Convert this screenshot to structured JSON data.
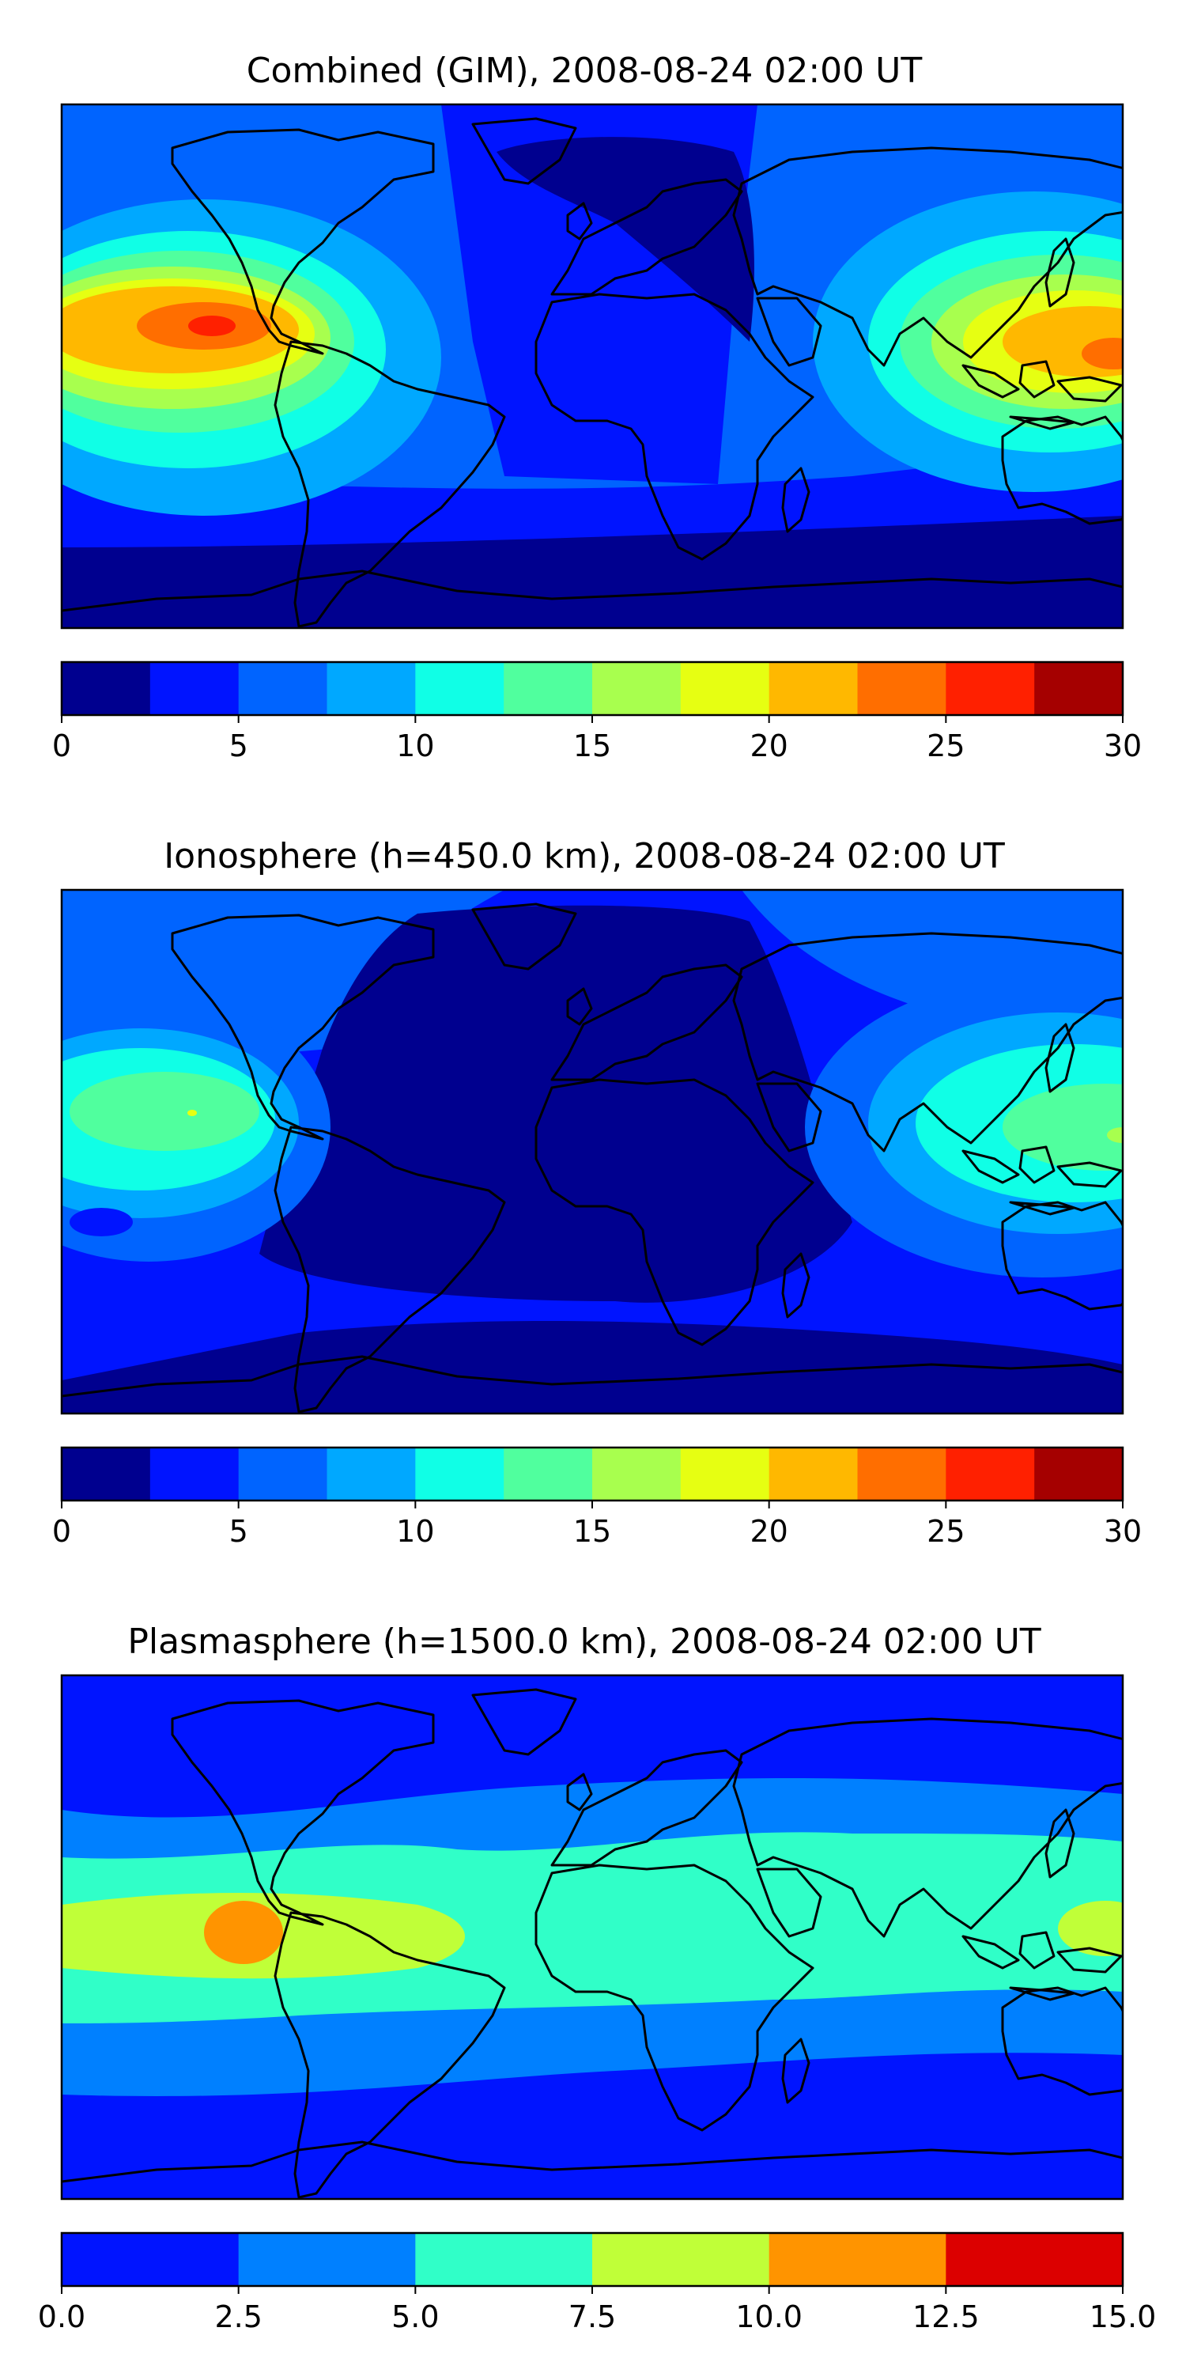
{
  "panels": [
    {
      "title": "Combined (GIM), 2008-08-24 02:00 UT",
      "colorbar": {
        "min": 0,
        "max": 30,
        "levels": [
          0,
          2.5,
          5,
          7.5,
          10,
          12.5,
          15,
          17.5,
          20,
          22.5,
          25,
          27.5,
          30
        ],
        "colors": [
          "#00008f",
          "#0014ff",
          "#0064ff",
          "#00a8ff",
          "#10ffe6",
          "#50ff9e",
          "#a8ff4e",
          "#e6ff12",
          "#ffb800",
          "#ff6e00",
          "#ff2000",
          "#a50000"
        ],
        "tick_labels": [
          "0",
          "5",
          "10",
          "15",
          "20",
          "25",
          "30"
        ]
      }
    },
    {
      "title": "Ionosphere  (h=450.0 km), 2008-08-24 02:00 UT",
      "colorbar": {
        "min": 0,
        "max": 30,
        "levels": [
          0,
          2.5,
          5,
          7.5,
          10,
          12.5,
          15,
          17.5,
          20,
          22.5,
          25,
          27.5,
          30
        ],
        "colors": [
          "#00008f",
          "#0014ff",
          "#0064ff",
          "#00a8ff",
          "#10ffe6",
          "#50ff9e",
          "#a8ff4e",
          "#e6ff12",
          "#ffb800",
          "#ff6e00",
          "#ff2000",
          "#a50000"
        ],
        "tick_labels": [
          "0",
          "5",
          "10",
          "15",
          "20",
          "25",
          "30"
        ]
      }
    },
    {
      "title": "Plasmasphere (h=1500.0 km), 2008-08-24 02:00 UT",
      "colorbar": {
        "min": 0,
        "max": 15,
        "levels": [
          0,
          2.5,
          5,
          7.5,
          10,
          12.5,
          15
        ],
        "colors": [
          "#0014ff",
          "#0080ff",
          "#30ffc8",
          "#c0ff38",
          "#ff9400",
          "#dc0000"
        ],
        "tick_labels": [
          "0.0",
          "2.5",
          "5.0",
          "7.5",
          "10.0",
          "12.5",
          "15.0"
        ]
      }
    }
  ]
}
